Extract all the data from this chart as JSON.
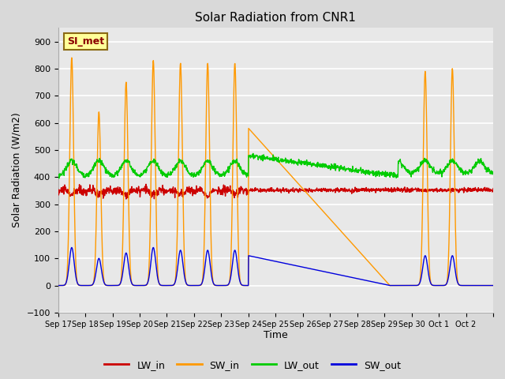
{
  "title": "Solar Radiation from CNR1",
  "xlabel": "Time",
  "ylabel": "Solar Radiation (W/m2)",
  "ylim": [
    -100,
    950
  ],
  "yticks": [
    -100,
    0,
    100,
    200,
    300,
    400,
    500,
    600,
    700,
    800,
    900
  ],
  "background_color": "#d9d9d9",
  "plot_bg_color": "#e8e8e8",
  "grid_color": "#ffffff",
  "legend_label": "SI_met",
  "legend_box_color": "#ffff99",
  "legend_box_edge": "#8b6914",
  "line_colors": {
    "LW_in": "#cc0000",
    "SW_in": "#ff9900",
    "LW_out": "#00cc00",
    "SW_out": "#0000dd"
  },
  "x_tick_labels": [
    "Sep 17",
    "Sep 18",
    "Sep 19",
    "Sep 20",
    "Sep 21",
    "Sep 22",
    "Sep 23",
    "Sep 24",
    "Sep 25",
    "Sep 26",
    "Sep 27",
    "Sep 28",
    "Sep 29",
    "Sep 30",
    "Oct 1",
    "Oct 2"
  ],
  "n_days": 16,
  "figsize": [
    6.4,
    4.8
  ],
  "dpi": 100
}
